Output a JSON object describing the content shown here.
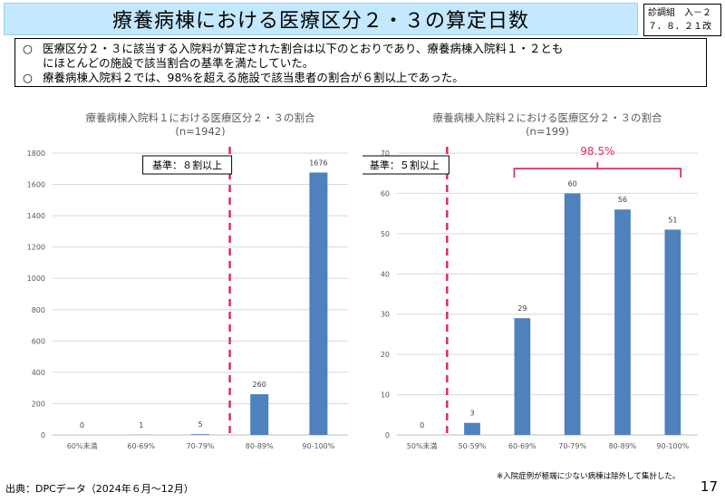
{
  "title": "療養病棟における医療区分２・３の算定日数",
  "doc_tag": {
    "line1": "診調組　入－２",
    "line2": "７．８．２１改"
  },
  "summary": {
    "bullet": "○",
    "line1": "医療区分２・３に該当する入院料が算定された割合は以下のとおりであり、療養病棟入院料１・２とも",
    "line1_cont": "にほとんどの施設で該当割合の基準を満たしていた。",
    "line2": "療養病棟入院料２では、98%を超える施設で該当患者の割合が６割以上であった。"
  },
  "chart_data": [
    {
      "type": "bar",
      "title": "療養病棟入院料１における医療区分２・３の割合",
      "subtitle": "(n=1942)",
      "categories": [
        "60%未満",
        "60-69%",
        "70-79%",
        "80-89%",
        "90-100%"
      ],
      "values": [
        0,
        1,
        5,
        260,
        1676
      ],
      "ylim": [
        0,
        1800
      ],
      "ytick_step": 200,
      "grid": true,
      "bar_color": "#4f81bd",
      "threshold_label": "基準：８割以上",
      "threshold_after_index": 2,
      "threshold_color": "#d9305f"
    },
    {
      "type": "bar",
      "title": "療養病棟入院料２における医療区分２・３の割合",
      "subtitle": "(n=199)",
      "categories": [
        "50%未満",
        "50-59%",
        "60-69%",
        "70-79%",
        "80-89%",
        "90-100%"
      ],
      "values": [
        0,
        3,
        29,
        60,
        56,
        51
      ],
      "ylim": [
        0,
        70
      ],
      "ytick_step": 10,
      "grid": true,
      "bar_color": "#4f81bd",
      "threshold_label": "基準：５割以上",
      "threshold_after_index": 0,
      "threshold_color": "#d9305f",
      "bracket_label": "98.5%",
      "bracket_from_index": 2,
      "bracket_to_index": 5,
      "bracket_color": "#d9305f"
    }
  ],
  "source": "出典：DPCデータ（2024年６月～12月）",
  "note": "※入院症例が極端に少ない病棟は除外して集計した。",
  "page_number": "17"
}
